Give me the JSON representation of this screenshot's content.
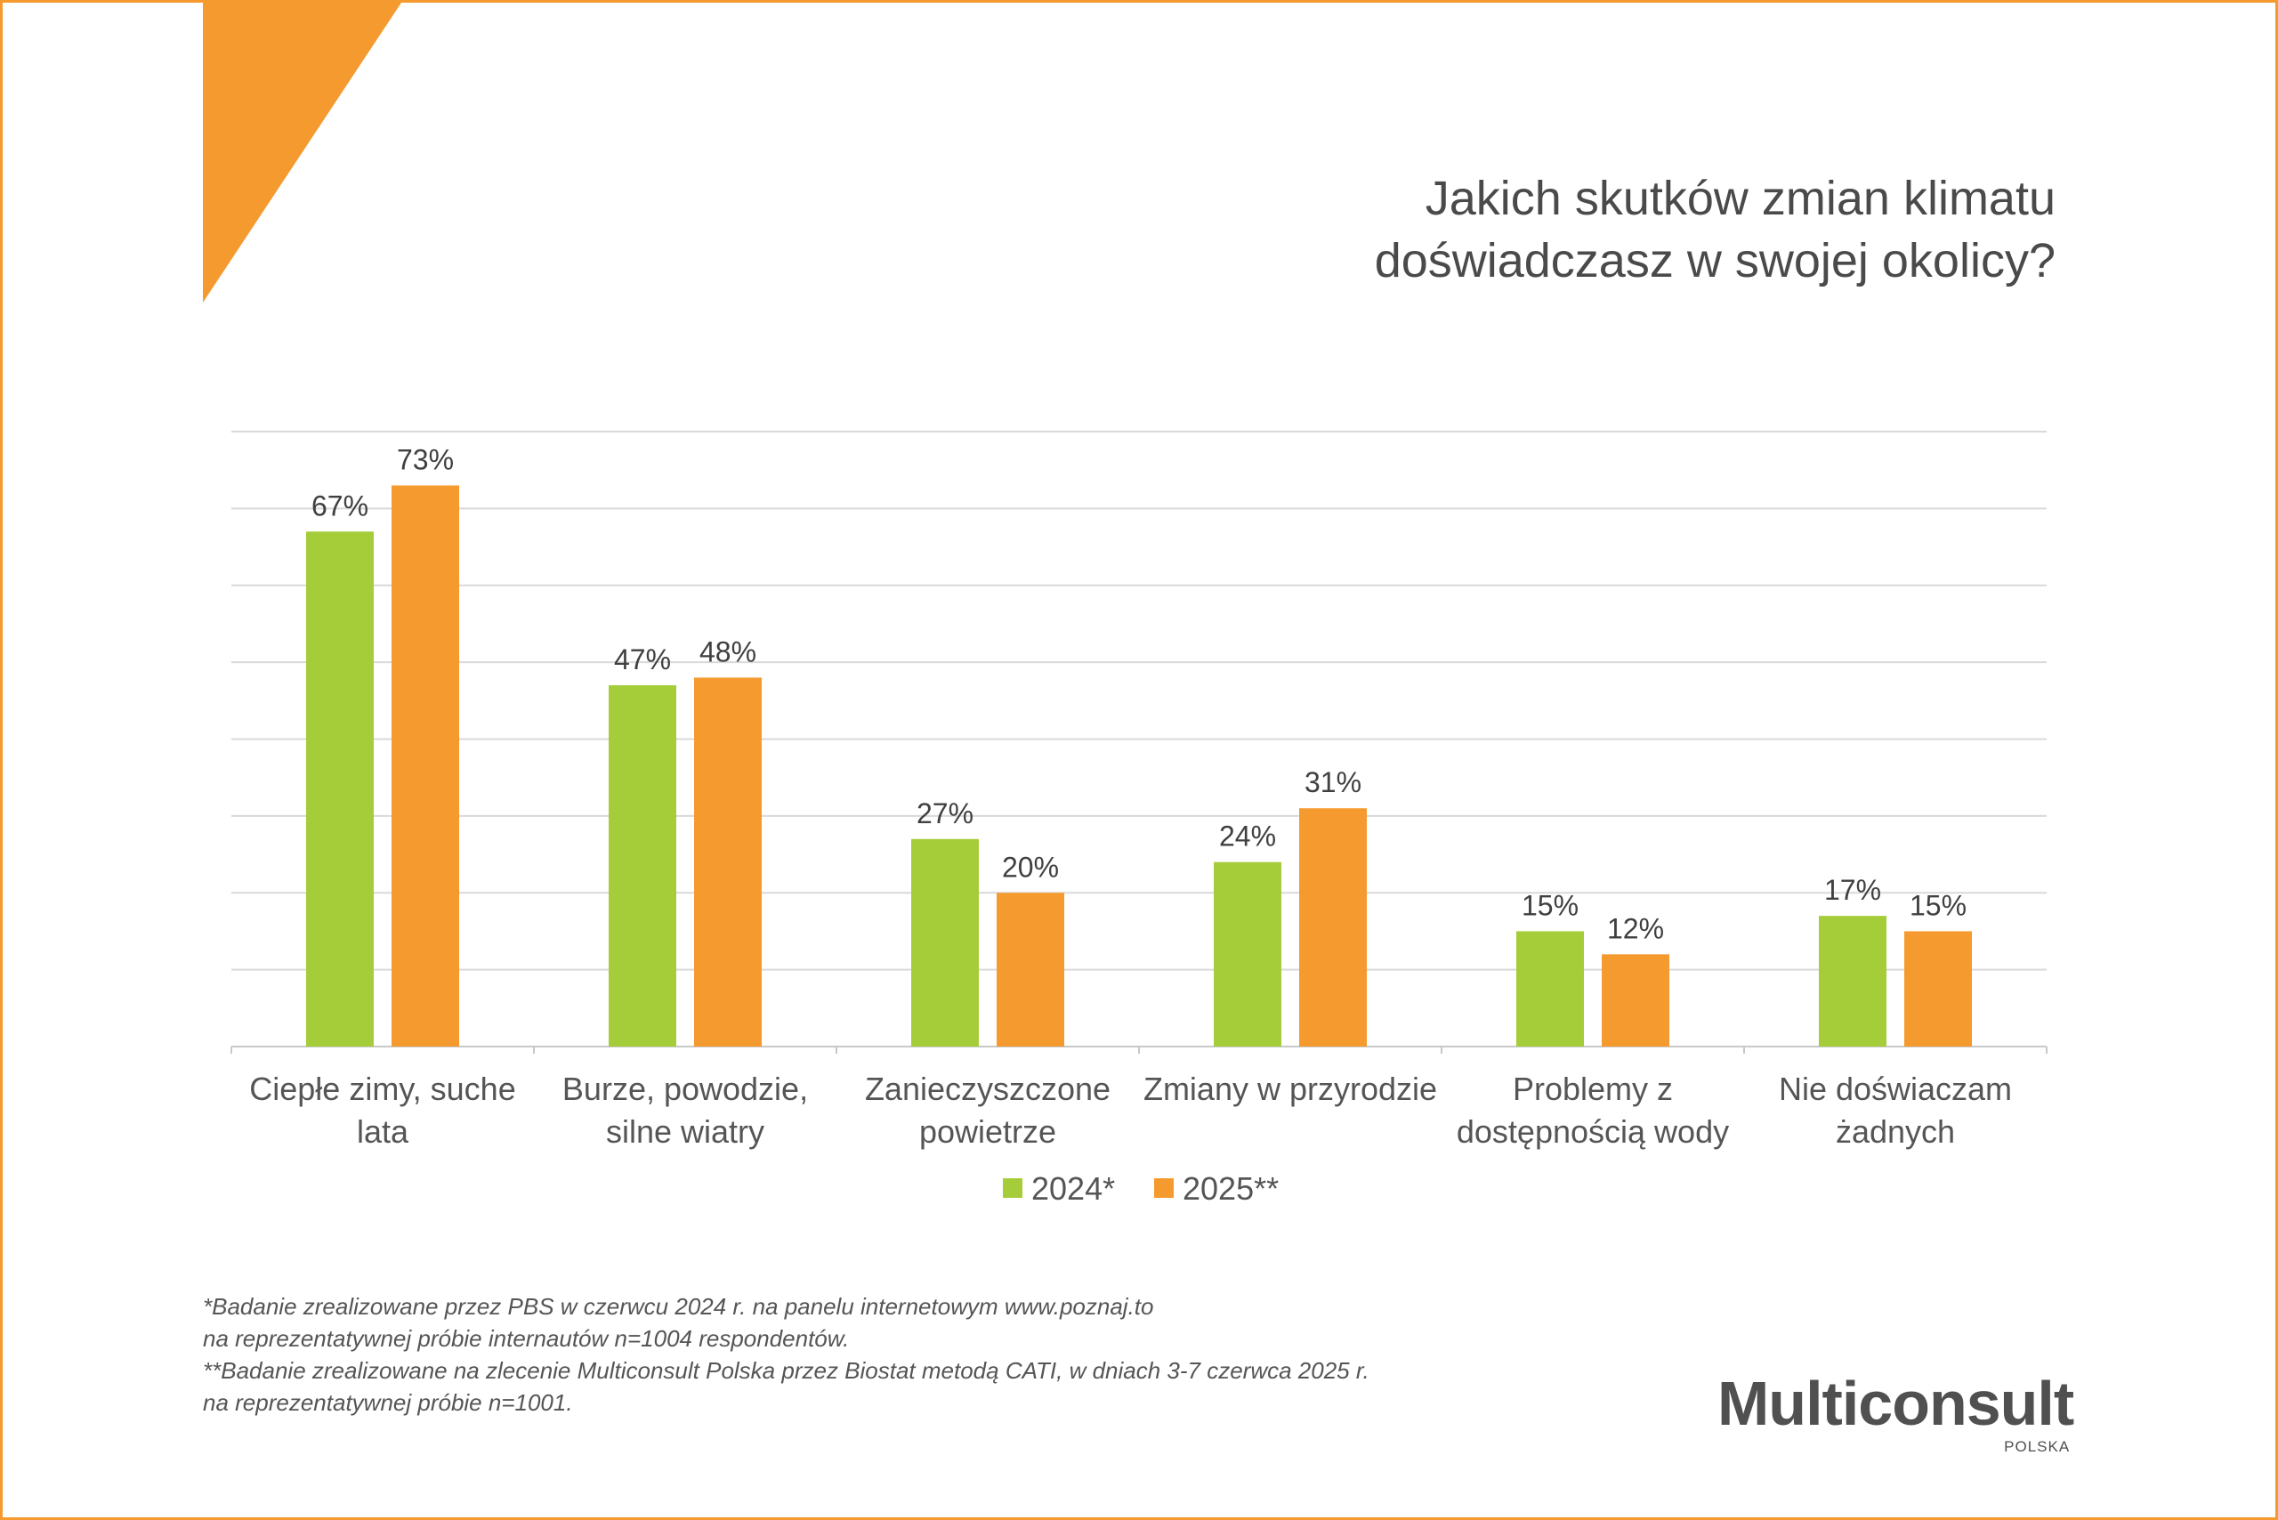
{
  "title": {
    "line1": "Jakich skutków zmian klimatu",
    "line2": "doświadczasz w swojej okolicy?"
  },
  "colors": {
    "accent": "#f59a2e",
    "green": "#a5cd39",
    "orange": "#f59a2e",
    "grid": "#d9d9d9"
  },
  "chart_data": {
    "type": "bar",
    "categories": [
      [
        "Ciepłe zimy, suche",
        "lata"
      ],
      [
        "Burze, powodzie,",
        "silne wiatry"
      ],
      [
        "Zanieczyszczone",
        "powietrze"
      ],
      [
        "Zmiany w przyrodzie"
      ],
      [
        "Problemy z",
        "dostępnością wody"
      ],
      [
        "Nie doświaczam",
        "żadnych"
      ]
    ],
    "series": [
      {
        "name": "2024*",
        "color": "#a5cd39",
        "values": [
          67,
          47,
          27,
          24,
          15,
          17
        ],
        "labels": [
          "67%",
          "47%",
          "27%",
          "24%",
          "15%",
          "17%"
        ]
      },
      {
        "name": "2025**",
        "color": "#f59a2e",
        "values": [
          73,
          48,
          20,
          31,
          12,
          15
        ],
        "labels": [
          "73%",
          "48%",
          "20%",
          "31%",
          "12%",
          "15%"
        ]
      }
    ],
    "ylim": [
      0,
      80
    ],
    "grid": true,
    "legend": "bottom"
  },
  "footnotes": [
    "*Badanie zrealizowane przez PBS w czerwcu 2024 r. na panelu internetowym www.poznaj.to",
    "na reprezentatywnej próbie internautów n=1004 respondentów.",
    "**Badanie zrealizowane na zlecenie Multiconsult Polska przez Biostat metodą CATI, w dniach 3-7 czerwca 2025 r.",
    "na reprezentatywnej próbie n=1001."
  ],
  "logo": {
    "name": "Multiconsult",
    "sub": "POLSKA"
  }
}
